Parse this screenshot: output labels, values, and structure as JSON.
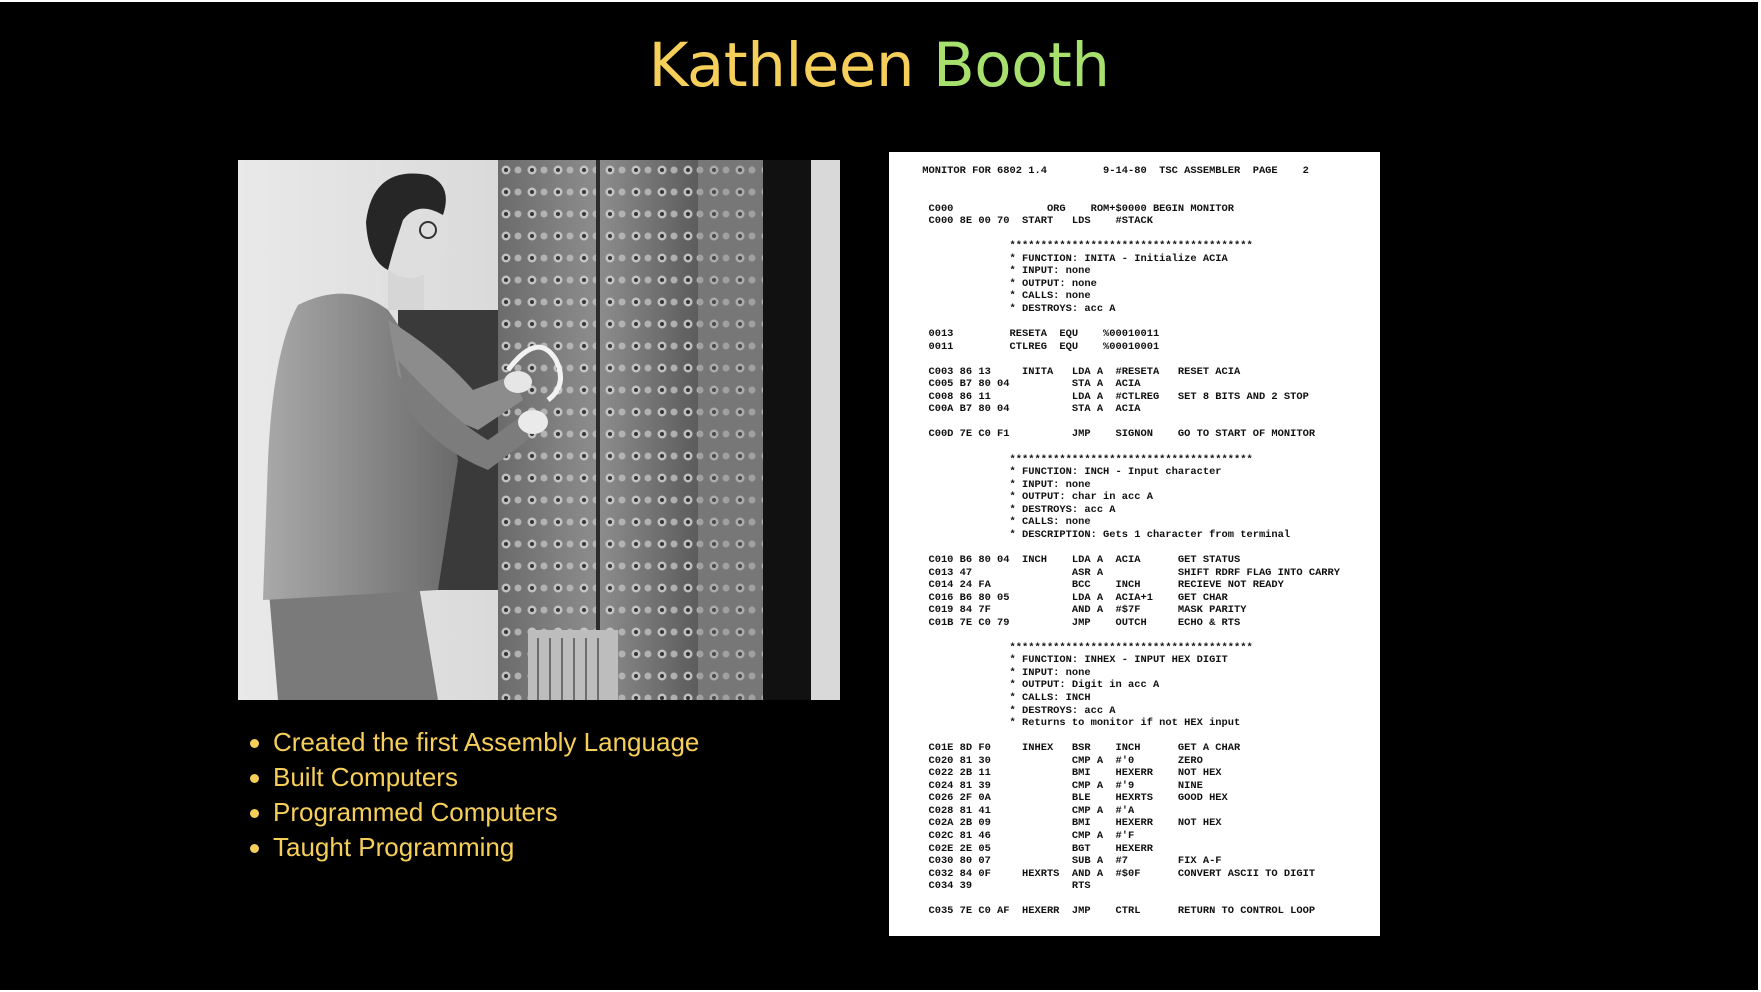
{
  "slide": {
    "title_part1": "Kathleen",
    "title_part2": "Booth",
    "title_colors": {
      "part1": "#f6cf5a",
      "part2": "#a8e06d"
    },
    "background": "#000000"
  },
  "photo": {
    "icon": "historical-photo-woman-operating-early-computer-panel"
  },
  "bullets": [
    "Created the first Assembly Language",
    "Built Computers",
    "Programmed Computers",
    "Taught Programming"
  ],
  "listing": {
    "text": " MONITOR FOR 6802 1.4         9-14-80  TSC ASSEMBLER  PAGE    2\n\n\n  C000               ORG    ROM+$0000 BEGIN MONITOR\n  C000 8E 00 70  START   LDS    #STACK\n\n               ***************************************\n               * FUNCTION: INITA - Initialize ACIA\n               * INPUT: none\n               * OUTPUT: none\n               * CALLS: none\n               * DESTROYS: acc A\n\n  0013         RESETA  EQU    %00010011\n  0011         CTLREG  EQU    %00010001\n\n  C003 86 13     INITA   LDA A  #RESETA   RESET ACIA\n  C005 B7 80 04          STA A  ACIA\n  C008 86 11             LDA A  #CTLREG   SET 8 BITS AND 2 STOP\n  C00A B7 80 04          STA A  ACIA\n\n  C00D 7E C0 F1          JMP    SIGNON    GO TO START OF MONITOR\n\n               ***************************************\n               * FUNCTION: INCH - Input character\n               * INPUT: none\n               * OUTPUT: char in acc A\n               * DESTROYS: acc A\n               * CALLS: none\n               * DESCRIPTION: Gets 1 character from terminal\n\n  C010 B6 80 04  INCH    LDA A  ACIA      GET STATUS\n  C013 47                ASR A            SHIFT RDRF FLAG INTO CARRY\n  C014 24 FA             BCC    INCH      RECIEVE NOT READY\n  C016 B6 80 05          LDA A  ACIA+1    GET CHAR\n  C019 84 7F             AND A  #$7F      MASK PARITY\n  C01B 7E C0 79          JMP    OUTCH     ECHO & RTS\n\n               ***************************************\n               * FUNCTION: INHEX - INPUT HEX DIGIT\n               * INPUT: none\n               * OUTPUT: Digit in acc A\n               * CALLS: INCH\n               * DESTROYS: acc A\n               * Returns to monitor if not HEX input\n\n  C01E 8D F0     INHEX   BSR    INCH      GET A CHAR\n  C020 81 30             CMP A  #'0       ZERO\n  C022 2B 11             BMI    HEXERR    NOT HEX\n  C024 81 39             CMP A  #'9       NINE\n  C026 2F 0A             BLE    HEXRTS    GOOD HEX\n  C028 81 41             CMP A  #'A\n  C02A 2B 09             BMI    HEXERR    NOT HEX\n  C02C 81 46             CMP A  #'F\n  C02E 2E 05             BGT    HEXERR\n  C030 80 07             SUB A  #7        FIX A-F\n  C032 84 0F     HEXRTS  AND A  #$0F      CONVERT ASCII TO DIGIT\n  C034 39                RTS\n\n  C035 7E C0 AF  HEXERR  JMP    CTRL      RETURN TO CONTROL LOOP"
  }
}
